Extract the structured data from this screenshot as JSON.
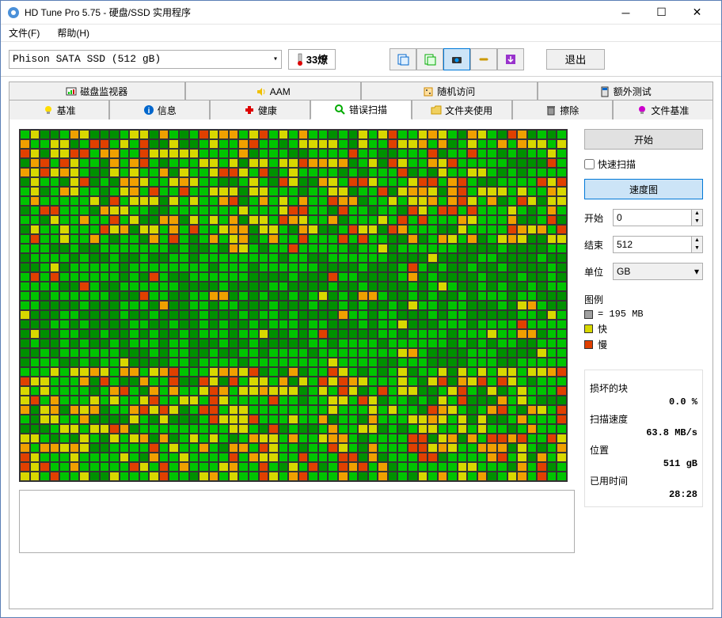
{
  "window": {
    "title": "HD Tune Pro 5.75 - 硬盘/SSD 实用程序"
  },
  "menu": {
    "file": "文件(F)",
    "help": "帮助(H)"
  },
  "toolbar": {
    "drive": "Phison SATA SSD (512 gB)",
    "temp": "33燎",
    "exit": "退出"
  },
  "tabs_top": [
    "磁盘监视器",
    "AAM",
    "随机访问",
    "额外测试"
  ],
  "tabs_bottom": [
    "基准",
    "信息",
    "健康",
    "错误扫描",
    "文件夹使用",
    "擦除",
    "文件基准"
  ],
  "side": {
    "start": "开始",
    "quick": "快速扫描",
    "speed_map": "速度图",
    "start_label": "开始",
    "start_val": "0",
    "end_label": "结束",
    "end_val": "512",
    "unit_label": "单位",
    "unit_val": "GB",
    "legend_title": "图例",
    "legend_size": "= 195 MB",
    "legend_fast": "快",
    "legend_slow": "慢"
  },
  "stats": {
    "damaged_label": "损坏的块",
    "damaged_val": "0.0 %",
    "speed_label": "扫描速度",
    "speed_val": "63.8 MB/s",
    "pos_label": "位置",
    "pos_val": "511 gB",
    "time_label": "已用时间",
    "time_val": "28:28"
  },
  "heatmap": {
    "cols": 55,
    "rows": 37,
    "colors": {
      "g": "#00c400",
      "y": "#d8d800",
      "o": "#f0a000",
      "r": "#e04000",
      "dg": "#009000"
    },
    "legend_gray": "#a0a0a0",
    "legend_yellow": "#d8d800",
    "legend_red": "#e04000"
  }
}
